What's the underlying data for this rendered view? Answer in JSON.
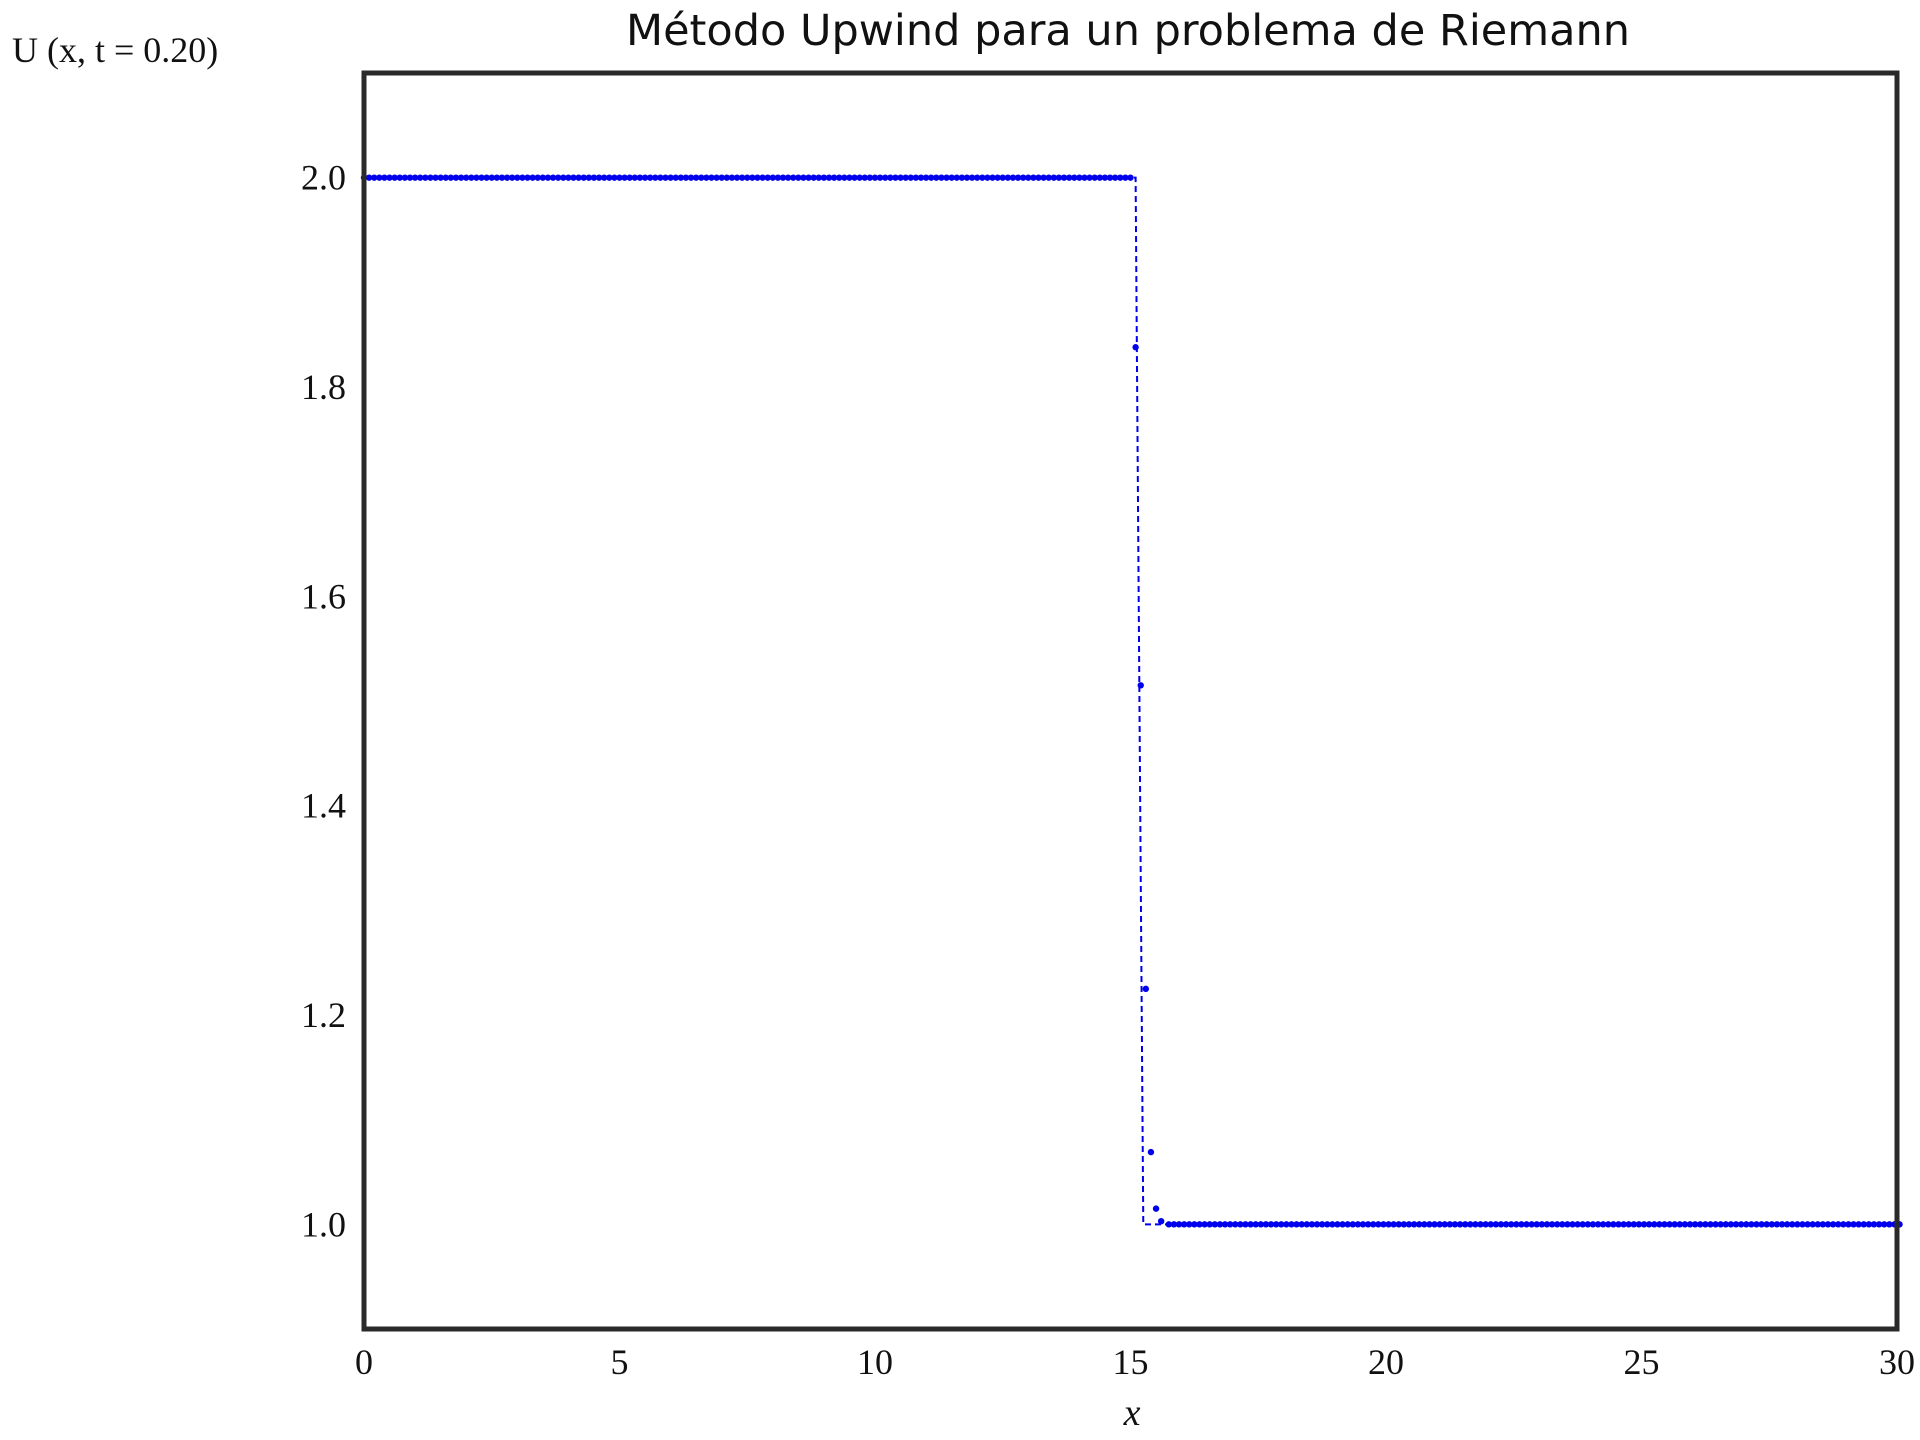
{
  "chart_data": {
    "type": "line",
    "title": "Método Upwind para un problema de Riemann",
    "xlabel": "x",
    "ylabel": "U (x, t = 0.20)",
    "xlim": [
      0,
      30
    ],
    "ylim": [
      0.9,
      2.1
    ],
    "xticks": [
      0,
      5,
      10,
      15,
      20,
      25,
      30
    ],
    "yticks": [
      1.0,
      1.2,
      1.4,
      1.6,
      1.8,
      2.0
    ],
    "xtick_labels": [
      "0",
      "5",
      "10",
      "15",
      "20",
      "25",
      "30"
    ],
    "ytick_labels": [
      "1.0",
      "1.2",
      "1.4",
      "1.6",
      "1.8",
      "2.0"
    ],
    "grid": false,
    "series": [
      {
        "style": "dashed-line",
        "color": "#0000ee",
        "x": [
          0,
          15.1,
          15.1,
          15.25,
          15.25,
          30
        ],
        "y": [
          2.0,
          2.0,
          2.0,
          1.0,
          1.0,
          1.0
        ]
      },
      {
        "style": "points",
        "color": "#0000ee",
        "left_state": {
          "x_start": 0,
          "x_end": 15.0,
          "value": 2.0
        },
        "right_state": {
          "x_start": 15.75,
          "x_end": 30,
          "value": 1.0
        },
        "spacing": 0.1,
        "transition_points": [
          {
            "x": 15.1,
            "y": 1.838
          },
          {
            "x": 15.2,
            "y": 1.515
          },
          {
            "x": 15.3,
            "y": 1.225
          },
          {
            "x": 15.4,
            "y": 1.069
          },
          {
            "x": 15.5,
            "y": 1.015
          },
          {
            "x": 15.6,
            "y": 1.003
          }
        ]
      }
    ]
  }
}
